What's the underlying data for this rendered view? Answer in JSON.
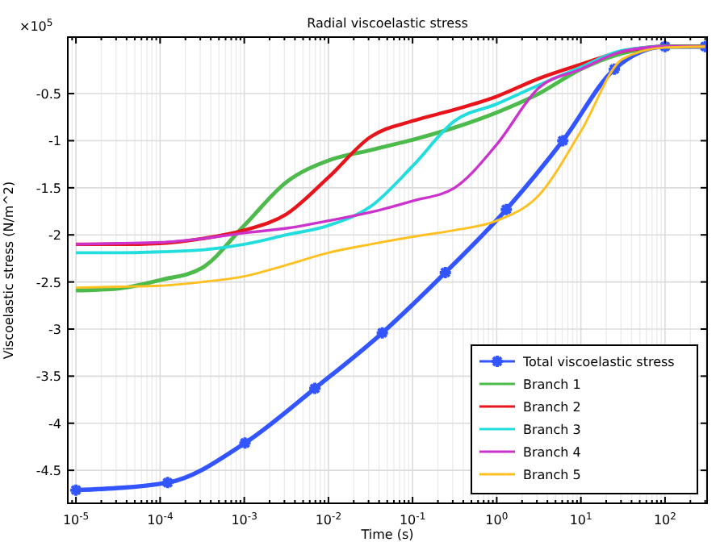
{
  "chart_data": {
    "type": "line",
    "title": "Radial viscoelastic stress",
    "xlabel": "Time (s)",
    "ylabel": "Viscoelastic stress (N/m^2)",
    "annotations": [
      "×10$^{5}$"
    ],
    "log": "x",
    "grid": true,
    "legend": "bottom right",
    "line_style": "solid",
    "xlim": [
      8e-06,
      316
    ],
    "ylim": [
      -4.85,
      0.1
    ],
    "xticks": [
      {
        "value": 1e-05,
        "label": "10$^{-5}$"
      },
      {
        "value": 0.0001,
        "label": "10$^{-4}$"
      },
      {
        "value": 0.001,
        "label": "10$^{-3}$"
      },
      {
        "value": 0.01,
        "label": "10$^{-2}$"
      },
      {
        "value": 0.1,
        "label": "10$^{-1}$"
      },
      {
        "value": 1,
        "label": "10$^{0}$"
      },
      {
        "value": 10,
        "label": "10$^{1}$"
      },
      {
        "value": 100,
        "label": "10$^{2}$"
      }
    ],
    "yticks": [
      -4.5,
      -4,
      -3.5,
      -3,
      -2.5,
      -2,
      -1.5,
      -1,
      -0.5
    ],
    "x": [
      1e-05,
      3.16e-05,
      0.0001,
      0.000316,
      0.001,
      0.00316,
      0.01,
      0.0316,
      0.1,
      0.316,
      1,
      3.16,
      10,
      31.6,
      100,
      300
    ],
    "series": [
      {
        "name": "Total viscoelastic stress",
        "color": "#3355ff",
        "marker": "cross",
        "x": [
          1e-05,
          0.000123,
          0.00102,
          0.0069,
          0.0437,
          0.245,
          1.3,
          6.1,
          25,
          100,
          300
        ],
        "values": [
          -4.71,
          -4.63,
          -4.21,
          -3.63,
          -3.04,
          -2.4,
          -1.73,
          -1.0,
          -0.24,
          0,
          0
        ]
      },
      {
        "name": "Branch 1",
        "color": "#4cbb4c",
        "values": [
          -2.59,
          -2.57,
          -2.48,
          -2.35,
          -1.9,
          -1.44,
          -1.21,
          -1.1,
          -0.99,
          -0.86,
          -0.7,
          -0.5,
          -0.24,
          -0.07,
          0,
          0
        ]
      },
      {
        "name": "Branch 2",
        "color": "#e8141c",
        "values": [
          -2.1,
          -2.1,
          -2.09,
          -2.04,
          -1.95,
          -1.78,
          -1.39,
          -0.96,
          -0.79,
          -0.67,
          -0.53,
          -0.34,
          -0.19,
          -0.05,
          0,
          0
        ]
      },
      {
        "name": "Branch 3",
        "color": "#22dddd",
        "values": [
          -2.19,
          -2.19,
          -2.18,
          -2.16,
          -2.1,
          -2.0,
          -1.9,
          -1.7,
          -1.27,
          -0.79,
          -0.61,
          -0.41,
          -0.22,
          -0.04,
          0,
          0
        ]
      },
      {
        "name": "Branch 4",
        "color": "#cc33cc",
        "values": [
          -2.1,
          -2.09,
          -2.08,
          -2.04,
          -1.98,
          -1.93,
          -1.85,
          -1.76,
          -1.64,
          -1.5,
          -1.04,
          -0.44,
          -0.24,
          -0.05,
          0,
          0
        ]
      },
      {
        "name": "Branch 5",
        "color": "#ffc020",
        "values": [
          -2.56,
          -2.55,
          -2.54,
          -2.5,
          -2.44,
          -2.32,
          -2.19,
          -2.1,
          -2.02,
          -1.95,
          -1.85,
          -1.58,
          -0.9,
          -0.13,
          -0.01,
          0
        ]
      }
    ]
  }
}
